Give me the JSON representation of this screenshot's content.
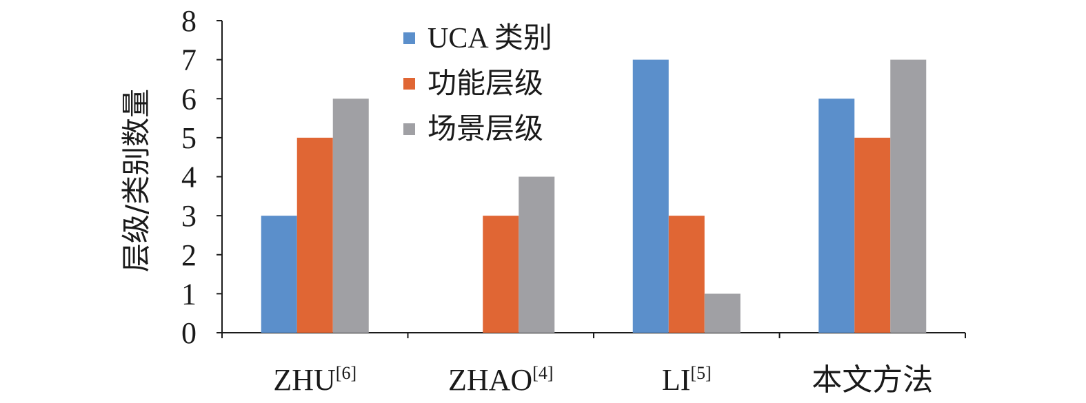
{
  "chart_data": {
    "type": "bar",
    "title": "",
    "xlabel": "",
    "ylabel": "层级/类别数量",
    "ylim": [
      0,
      8
    ],
    "yticks": [
      0,
      1,
      2,
      3,
      4,
      5,
      6,
      7,
      8
    ],
    "grid": false,
    "legend_position": "top-center",
    "categories": [
      {
        "base": "ZHU",
        "ref": "[6]"
      },
      {
        "base": "ZHAO",
        "ref": "[4]"
      },
      {
        "base": "LI",
        "ref": "[5]"
      },
      {
        "base": "本文方法",
        "ref": ""
      }
    ],
    "series": [
      {
        "name": "UCA 类别",
        "color": "#5B8FCB",
        "values": [
          3,
          0,
          7,
          6
        ]
      },
      {
        "name": "功能层级",
        "color": "#E06634",
        "values": [
          5,
          3,
          3,
          5
        ]
      },
      {
        "name": "场景层级",
        "color": "#A0A0A4",
        "values": [
          6,
          4,
          1,
          7
        ]
      }
    ]
  }
}
